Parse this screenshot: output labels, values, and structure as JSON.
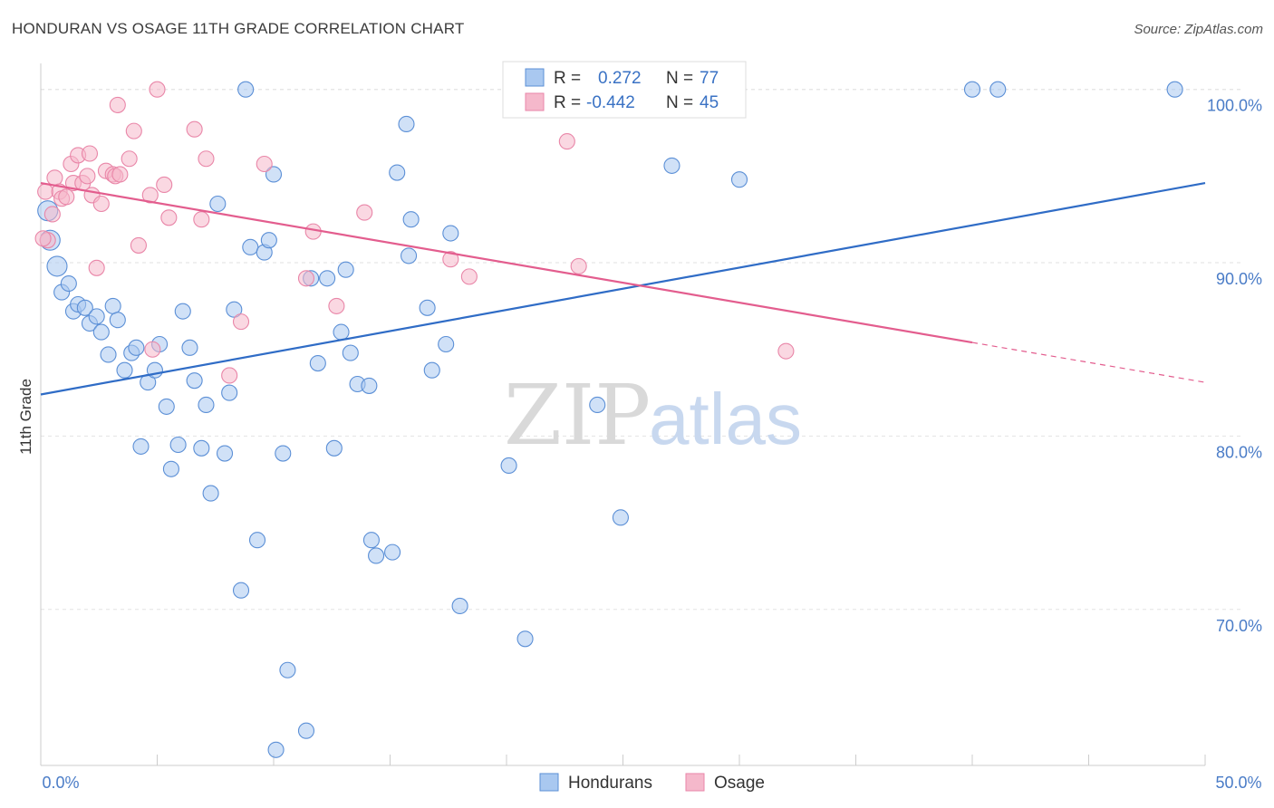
{
  "title": "HONDURAN VS OSAGE 11TH GRADE CORRELATION CHART",
  "source": "Source: ZipAtlas.com",
  "watermark": {
    "zip": "ZIP",
    "atlas": "atlas"
  },
  "legend_top": {
    "rows": [
      {
        "r_label": "R =",
        "r_value": "0.272",
        "n_label": "N =",
        "n_value": "77",
        "color": "#a9c8f0"
      },
      {
        "r_label": "R =",
        "r_value": "-0.442",
        "n_label": "N =",
        "n_value": "45",
        "color": "#f5b8cb"
      }
    ]
  },
  "legend_bottom": [
    {
      "label": "Hondurans",
      "color": "#a9c8f0"
    },
    {
      "label": "Osage",
      "color": "#f5b8cb"
    }
  ],
  "chart_data": {
    "type": "scatter",
    "title": "HONDURAN VS OSAGE 11TH GRADE CORRELATION CHART",
    "xlabel": "",
    "ylabel": "11th Grade",
    "xlim": [
      0,
      50
    ],
    "ylim": [
      61,
      101.5
    ],
    "x_tick_labels": [
      {
        "x": 0,
        "label": "0.0%"
      },
      {
        "x": 50,
        "label": "50.0%"
      }
    ],
    "y_tick_labels": [
      {
        "y": 100,
        "label": "100.0%"
      },
      {
        "y": 90,
        "label": "90.0%"
      },
      {
        "y": 80,
        "label": "80.0%"
      },
      {
        "y": 70,
        "label": "70.0%"
      }
    ],
    "grid": true,
    "series": [
      {
        "name": "Hondurans",
        "color": "#a9c8f0",
        "stroke": "#5b8fd6",
        "trend": {
          "x": [
            0,
            50
          ],
          "y": [
            82.4,
            94.6
          ],
          "color": "#2f6cc6"
        },
        "points": [
          [
            0.3,
            93.0
          ],
          [
            0.4,
            91.3
          ],
          [
            0.7,
            89.8
          ],
          [
            0.9,
            88.3
          ],
          [
            1.2,
            88.8
          ],
          [
            1.4,
            87.2
          ],
          [
            1.6,
            87.6
          ],
          [
            1.9,
            87.4
          ],
          [
            2.1,
            86.5
          ],
          [
            2.4,
            86.9
          ],
          [
            2.6,
            86.0
          ],
          [
            2.9,
            84.7
          ],
          [
            3.1,
            87.5
          ],
          [
            3.3,
            86.7
          ],
          [
            3.6,
            83.8
          ],
          [
            3.9,
            84.8
          ],
          [
            4.1,
            85.1
          ],
          [
            4.3,
            79.4
          ],
          [
            4.6,
            83.1
          ],
          [
            4.9,
            83.8
          ],
          [
            5.1,
            85.3
          ],
          [
            5.4,
            81.7
          ],
          [
            5.6,
            78.1
          ],
          [
            5.9,
            79.5
          ],
          [
            6.1,
            87.2
          ],
          [
            6.4,
            85.1
          ],
          [
            6.6,
            83.2
          ],
          [
            6.9,
            79.3
          ],
          [
            7.1,
            81.8
          ],
          [
            7.3,
            76.7
          ],
          [
            7.6,
            93.4
          ],
          [
            7.9,
            79.0
          ],
          [
            8.1,
            82.5
          ],
          [
            8.3,
            87.3
          ],
          [
            8.6,
            71.1
          ],
          [
            8.8,
            100.0
          ],
          [
            9.0,
            90.9
          ],
          [
            9.3,
            74.0
          ],
          [
            9.6,
            90.6
          ],
          [
            9.8,
            91.3
          ],
          [
            10.0,
            95.1
          ],
          [
            10.4,
            79.0
          ],
          [
            10.6,
            66.5
          ],
          [
            10.1,
            61.9
          ],
          [
            11.4,
            63.0
          ],
          [
            11.6,
            89.1
          ],
          [
            11.9,
            84.2
          ],
          [
            12.3,
            89.1
          ],
          [
            12.6,
            79.3
          ],
          [
            12.9,
            86.0
          ],
          [
            13.1,
            89.6
          ],
          [
            13.3,
            84.8
          ],
          [
            13.6,
            83.0
          ],
          [
            14.1,
            82.9
          ],
          [
            14.2,
            74.0
          ],
          [
            14.4,
            73.1
          ],
          [
            15.1,
            73.3
          ],
          [
            15.7,
            98.0
          ],
          [
            15.3,
            95.2
          ],
          [
            15.9,
            92.5
          ],
          [
            15.8,
            90.4
          ],
          [
            16.6,
            87.4
          ],
          [
            16.8,
            83.8
          ],
          [
            17.4,
            85.3
          ],
          [
            17.6,
            91.7
          ],
          [
            18.0,
            70.2
          ],
          [
            20.1,
            78.3
          ],
          [
            20.8,
            68.3
          ],
          [
            23.9,
            81.8
          ],
          [
            24.4,
            99.6
          ],
          [
            24.9,
            75.3
          ],
          [
            27.1,
            95.6
          ],
          [
            28.7,
            100.0
          ],
          [
            30.0,
            94.8
          ],
          [
            40.0,
            100.0
          ],
          [
            41.1,
            100.0
          ],
          [
            48.7,
            100.0
          ]
        ]
      },
      {
        "name": "Osage",
        "color": "#f5b8cb",
        "stroke": "#e986a8",
        "trend": {
          "x": [
            0,
            40
          ],
          "y": [
            94.6,
            85.4
          ],
          "dash_x": [
            40,
            50
          ],
          "dash_y": [
            85.4,
            83.1
          ],
          "color": "#e35d8e"
        },
        "points": [
          [
            0.2,
            94.1
          ],
          [
            0.3,
            91.3
          ],
          [
            0.5,
            92.8
          ],
          [
            0.6,
            94.9
          ],
          [
            0.8,
            94.1
          ],
          [
            0.9,
            93.7
          ],
          [
            1.1,
            93.8
          ],
          [
            1.3,
            95.7
          ],
          [
            1.4,
            94.6
          ],
          [
            1.6,
            96.2
          ],
          [
            1.8,
            94.6
          ],
          [
            2.0,
            95.0
          ],
          [
            2.1,
            96.3
          ],
          [
            2.2,
            93.9
          ],
          [
            2.4,
            89.7
          ],
          [
            2.6,
            93.4
          ],
          [
            2.8,
            95.3
          ],
          [
            3.1,
            95.1
          ],
          [
            3.2,
            95.0
          ],
          [
            3.4,
            95.1
          ],
          [
            3.3,
            99.1
          ],
          [
            3.8,
            96.0
          ],
          [
            4.0,
            97.6
          ],
          [
            4.2,
            91.0
          ],
          [
            4.8,
            85.0
          ],
          [
            4.7,
            93.9
          ],
          [
            5.0,
            100.0
          ],
          [
            5.3,
            94.5
          ],
          [
            5.5,
            92.6
          ],
          [
            6.6,
            97.7
          ],
          [
            6.9,
            92.5
          ],
          [
            7.1,
            96.0
          ],
          [
            8.1,
            83.5
          ],
          [
            8.6,
            86.6
          ],
          [
            9.6,
            95.7
          ],
          [
            11.4,
            89.1
          ],
          [
            11.7,
            91.8
          ],
          [
            12.7,
            87.5
          ],
          [
            13.9,
            92.9
          ],
          [
            17.6,
            90.2
          ],
          [
            18.4,
            89.2
          ],
          [
            22.6,
            97.0
          ],
          [
            23.1,
            89.8
          ],
          [
            32.0,
            84.9
          ],
          [
            0.1,
            91.4
          ]
        ]
      }
    ]
  }
}
